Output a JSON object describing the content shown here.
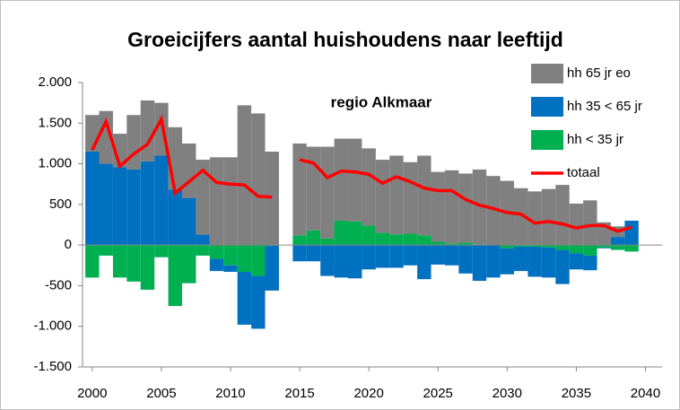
{
  "chart_data": {
    "type": "bar",
    "title": "Groeicijfers aantal huishoudens naar leeftijd",
    "annotation": "regio Alkmaar",
    "x": [
      2000,
      2001,
      2002,
      2003,
      2004,
      2005,
      2006,
      2007,
      2008,
      2009,
      2010,
      2011,
      2012,
      2013,
      2014,
      2015,
      2016,
      2017,
      2018,
      2019,
      2020,
      2021,
      2022,
      2023,
      2024,
      2025,
      2026,
      2027,
      2028,
      2029,
      2030,
      2031,
      2032,
      2033,
      2034,
      2035,
      2036,
      2037,
      2038,
      2039
    ],
    "series": [
      {
        "name": "hh 65 jr eo",
        "color": "#808080",
        "values": [
          450,
          650,
          410,
          670,
          750,
          650,
          770,
          670,
          920,
          1080,
          1080,
          1720,
          1620,
          1150,
          null,
          1130,
          1030,
          1130,
          1010,
          1020,
          950,
          900,
          970,
          880,
          980,
          860,
          900,
          850,
          920,
          850,
          790,
          700,
          660,
          690,
          740,
          510,
          550,
          280,
          130,
          0
        ]
      },
      {
        "name": "hh 35 < 65 jr",
        "color": "#0070c0",
        "values": [
          1150,
          1000,
          960,
          930,
          1030,
          1100,
          680,
          580,
          130,
          -150,
          -80,
          -650,
          -650,
          -550,
          null,
          -200,
          -200,
          -380,
          -400,
          -410,
          -300,
          -280,
          -280,
          -250,
          -420,
          -240,
          -250,
          -350,
          -440,
          -400,
          -320,
          -300,
          -370,
          -370,
          -420,
          -200,
          -180,
          -10,
          100,
          300
        ]
      },
      {
        "name": "hh < 35 jr",
        "color": "#00b050",
        "values": [
          -400,
          -130,
          -400,
          -450,
          -550,
          -150,
          -750,
          -470,
          -130,
          -170,
          -250,
          -330,
          -380,
          -10,
          null,
          120,
          180,
          80,
          300,
          290,
          240,
          150,
          130,
          140,
          120,
          40,
          20,
          30,
          10,
          0,
          -40,
          -20,
          -20,
          -30,
          -60,
          -100,
          -130,
          -30,
          -60,
          -80
        ]
      },
      {
        "name": "totaal",
        "color": "#ff0000",
        "kind": "line",
        "values": [
          1170,
          1520,
          970,
          1120,
          1240,
          1550,
          640,
          780,
          920,
          770,
          750,
          740,
          600,
          590,
          null,
          1050,
          1010,
          830,
          910,
          900,
          870,
          760,
          840,
          780,
          700,
          670,
          670,
          560,
          490,
          450,
          400,
          380,
          270,
          290,
          260,
          210,
          240,
          240,
          170,
          220
        ]
      }
    ],
    "xlim": [
      1999.3,
      2041.2
    ],
    "xticks": [
      2000,
      2005,
      2010,
      2015,
      2020,
      2025,
      2030,
      2035,
      2040
    ],
    "ylim": [
      -1500,
      2000
    ],
    "yticks": [
      {
        "value": 2000,
        "label": "2.000"
      },
      {
        "value": 1500,
        "label": "1.500"
      },
      {
        "value": 1000,
        "label": "1.000"
      },
      500,
      0,
      -500,
      {
        "value": -1000,
        "label": "-1.000"
      },
      {
        "value": -1500,
        "label": "-1.500"
      }
    ],
    "grid": false,
    "legend": "top-right"
  }
}
